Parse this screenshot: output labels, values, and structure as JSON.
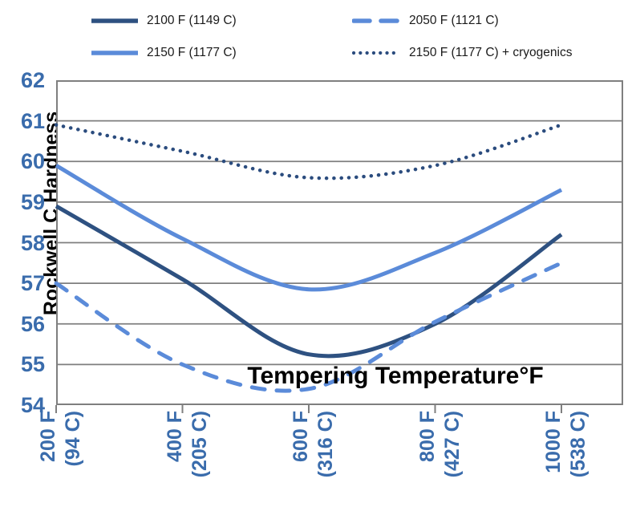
{
  "chart_data": {
    "type": "line",
    "title": "",
    "xlabel": "Tempering Temperature°F",
    "ylabel": "Rockwell C Hardness",
    "ylim": [
      54,
      62
    ],
    "yticks": [
      62,
      61,
      60,
      59,
      58,
      57,
      56,
      55,
      54
    ],
    "grid": true,
    "legend_position": "top",
    "categories": [
      "200 F (94 C)",
      "400 F (205 C)",
      "600 F (316 C)",
      "800 F (427 C)",
      "1000 F (538 C)"
    ],
    "category_label_lines": [
      [
        "200 F",
        "(94 C)"
      ],
      [
        "400 F",
        "(205 C)"
      ],
      [
        "600 F",
        "(316 C)"
      ],
      [
        "800 F",
        "(427 C)"
      ],
      [
        "1000 F",
        "(538 C)"
      ]
    ],
    "series": [
      {
        "name": "2100 F (1149 C)",
        "style": "solid",
        "color": "#2E5181",
        "values": [
          58.9,
          57.1,
          55.25,
          56.0,
          58.2
        ]
      },
      {
        "name": "2150 F (1177 C)",
        "style": "solid",
        "color": "#5B8BD9",
        "values": [
          59.9,
          58.1,
          56.85,
          57.75,
          59.3
        ]
      },
      {
        "name": "2050 F (1121 C)",
        "style": "dashed",
        "color": "#5B8BD9",
        "values": [
          57.0,
          55.0,
          54.4,
          56.05,
          57.5
        ]
      },
      {
        "name": "2150 F (1177 C) + cryogenics",
        "style": "dotted",
        "color": "#2B4C7E",
        "values": [
          60.9,
          60.25,
          59.6,
          59.9,
          60.9
        ]
      }
    ],
    "legend_grid_order": [
      0,
      2,
      1,
      3
    ]
  },
  "colors": {
    "gridline": "#7F7F7F",
    "plot_border": "#7F7F7F",
    "tick_label_blue": "#3A6CAC",
    "legend_text": "#1a1a1a",
    "background": "#ffffff"
  }
}
